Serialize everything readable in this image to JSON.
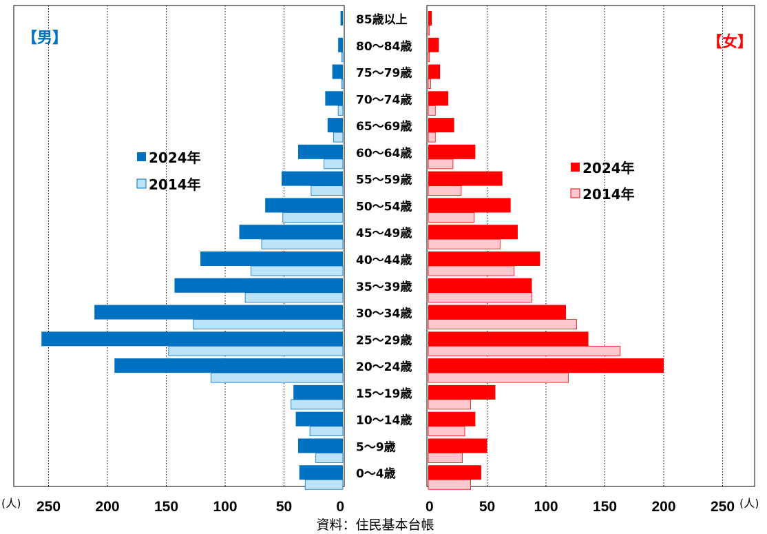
{
  "chart_data": {
    "type": "bar",
    "orientation": "horizontal",
    "layout": "population-pyramid",
    "categories": [
      "0〜4歳",
      "5〜9歳",
      "10〜14歳",
      "15〜19歳",
      "20〜24歳",
      "25〜29歳",
      "30〜34歳",
      "35〜39歳",
      "40〜44歳",
      "45〜49歳",
      "50〜54歳",
      "55〜59歳",
      "60〜64歳",
      "65〜69歳",
      "70〜74歳",
      "75〜79歳",
      "80〜84歳",
      "85歳以上"
    ],
    "panels": [
      {
        "side": "left",
        "label": "【男】",
        "color_label": "#0070c0",
        "series": [
          {
            "name": "2024年",
            "color": "#0070c0",
            "values": [
              37,
              38,
              40,
              42,
              194,
              256,
              211,
              143,
              121,
              88,
              66,
              52,
              38,
              13,
              15,
              9,
              4,
              2
            ]
          },
          {
            "name": "2014年",
            "color": "#bde3f9",
            "stroke": "#0070c0",
            "values": [
              32,
              23,
              28,
              44,
              112,
              148,
              127,
              83,
              78,
              69,
              51,
              27,
              16,
              8,
              4,
              1,
              1,
              0
            ]
          }
        ],
        "xlim": [
          0,
          250
        ],
        "ticks": [
          "250",
          "200",
          "150",
          "100",
          "50",
          "0"
        ]
      },
      {
        "side": "right",
        "label": "【女】",
        "color_label": "#ff0000",
        "series": [
          {
            "name": "2024年",
            "color": "#ff0000",
            "values": [
              45,
              50,
              40,
              57,
              200,
              136,
              117,
              88,
              95,
              76,
              70,
              63,
              40,
              22,
              17,
              10,
              9,
              3
            ]
          },
          {
            "name": "2014年",
            "color": "#ffc7ce",
            "stroke": "#ff0000",
            "values": [
              36,
              29,
              31,
              36,
              119,
              163,
              126,
              88,
              73,
              61,
              39,
              28,
              21,
              6,
              6,
              2,
              1,
              1
            ]
          }
        ],
        "xlim": [
          0,
          250
        ],
        "ticks": [
          "0",
          "50",
          "100",
          "150",
          "200",
          "250"
        ]
      }
    ],
    "unit_label": "(人)",
    "grid": "dotted vertical",
    "legend_placement": "middle of each panel"
  },
  "source_text": "資料：住民基本台帳"
}
